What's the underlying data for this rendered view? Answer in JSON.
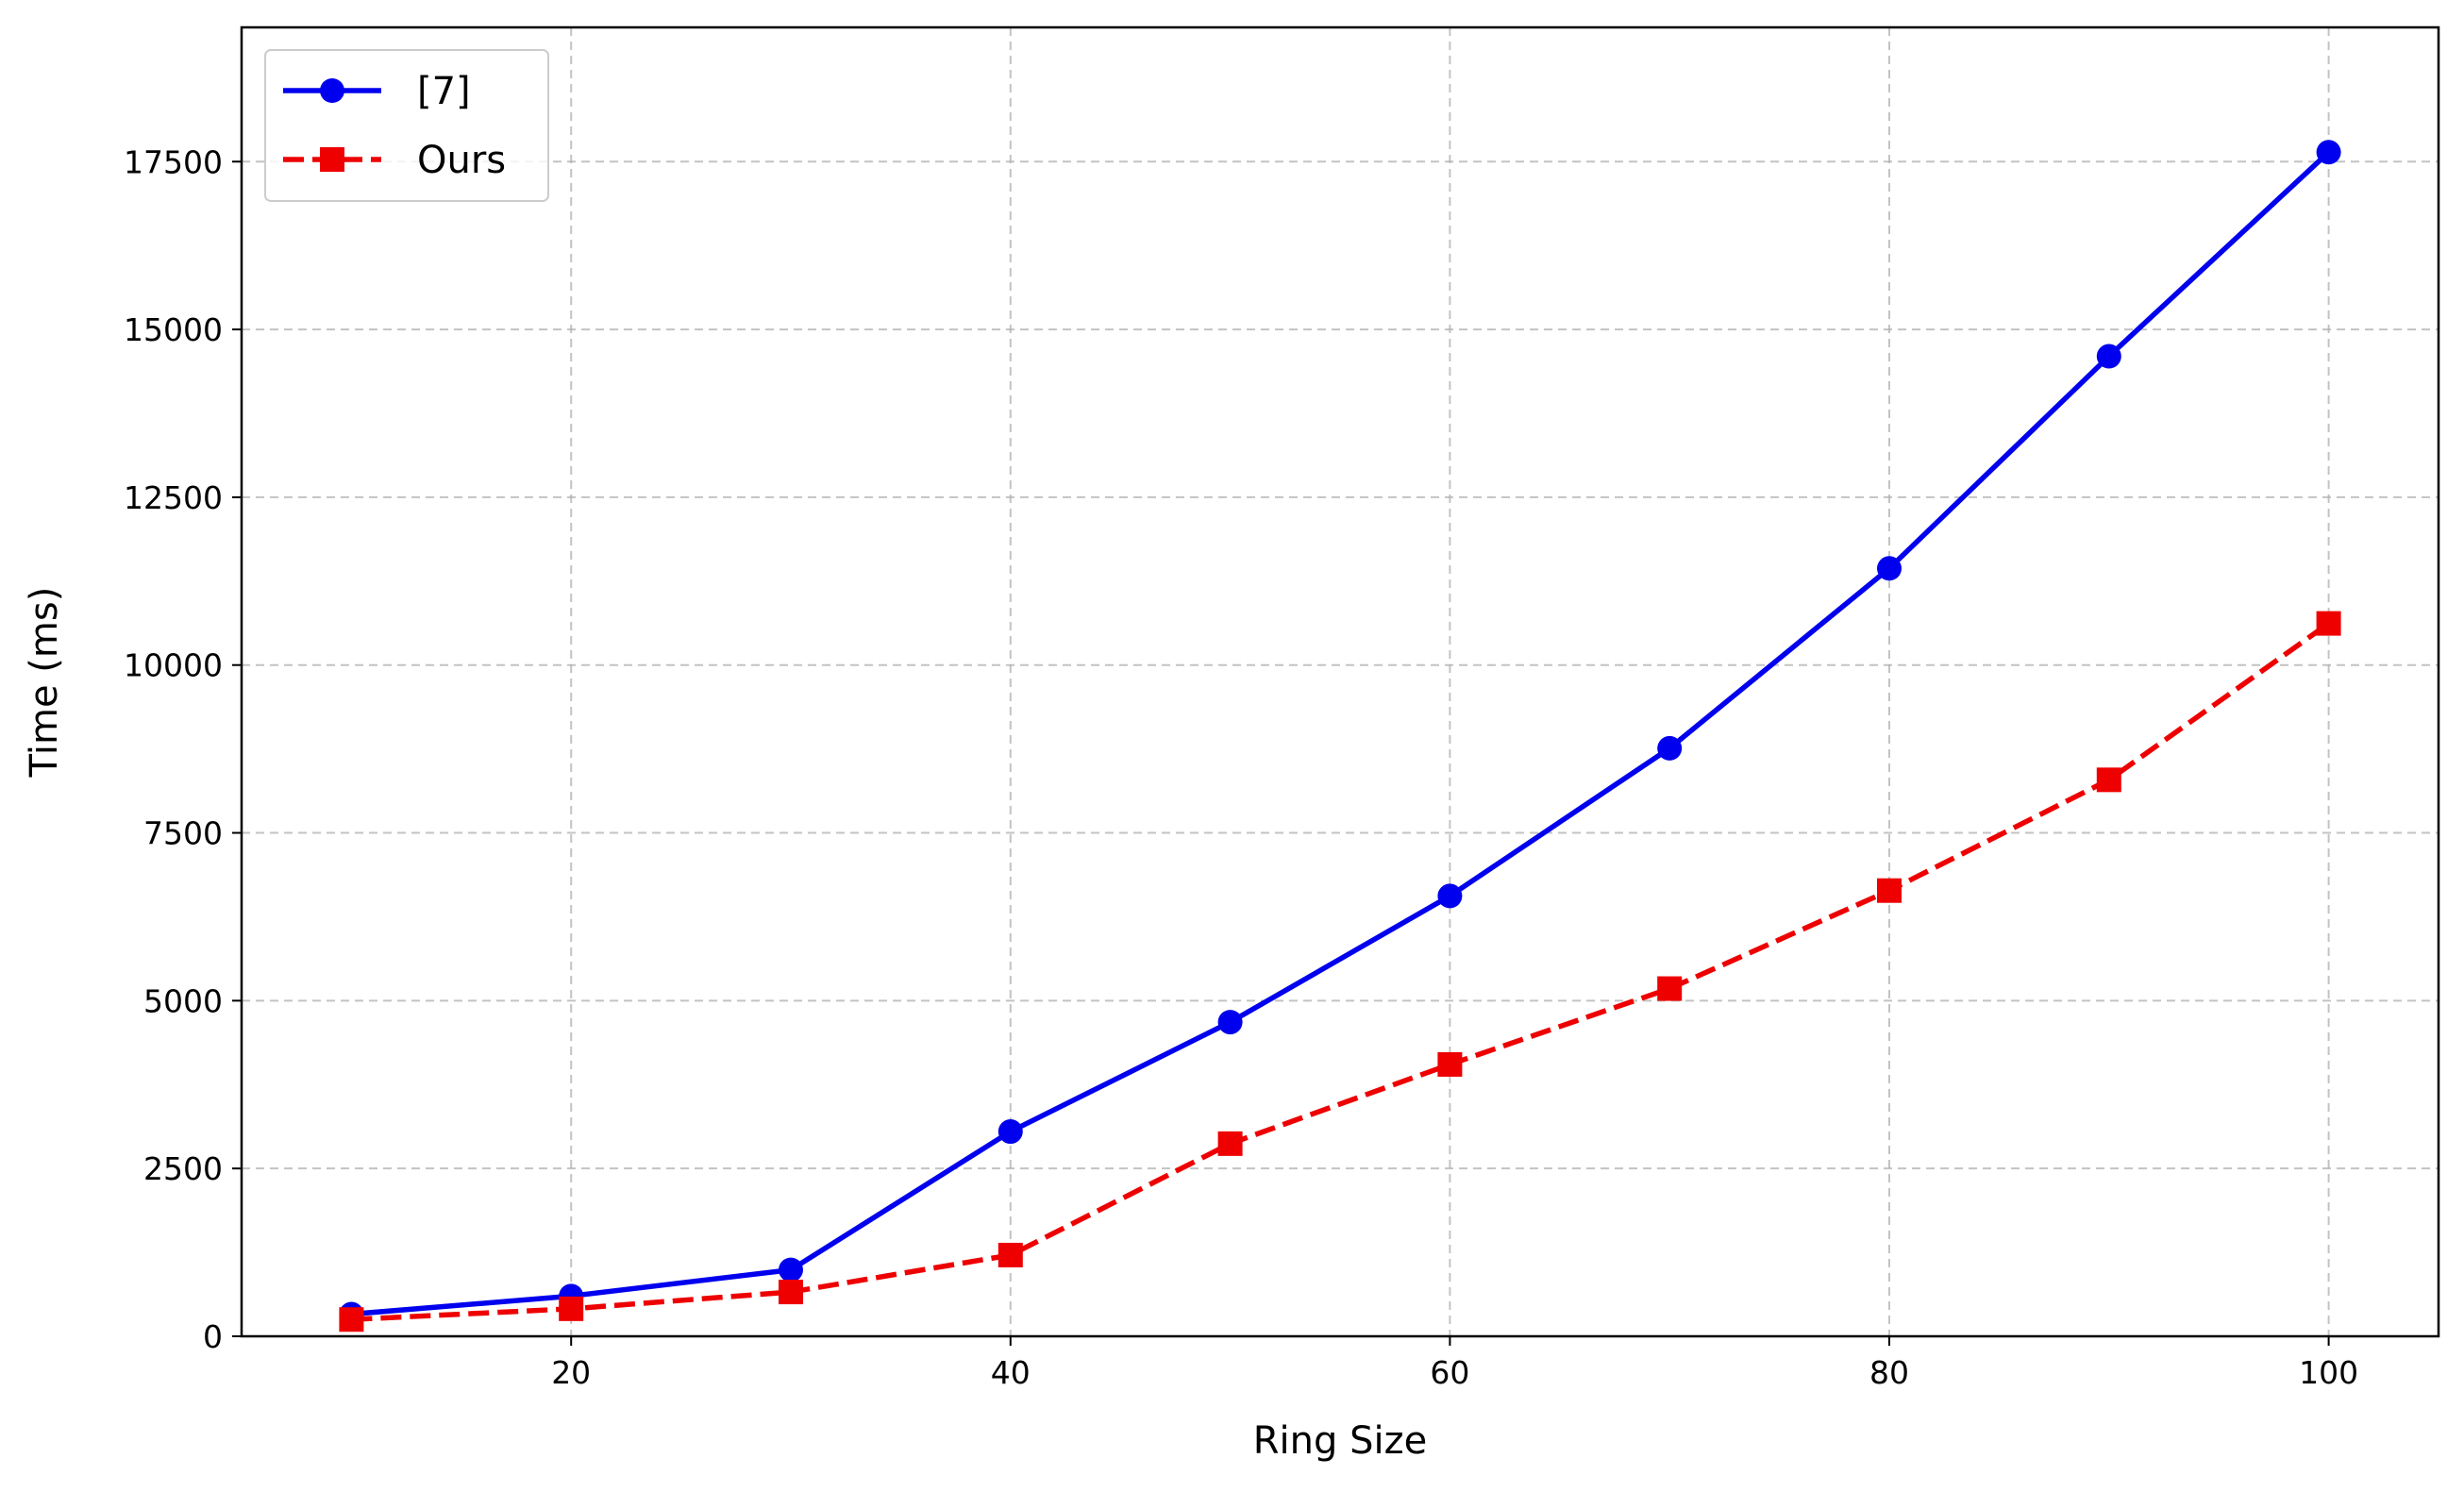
{
  "chart_data": {
    "type": "line",
    "title": "",
    "xlabel": "Ring Size",
    "ylabel": "Time (ms)",
    "xlim": [
      5,
      105
    ],
    "ylim": [
      0,
      19500
    ],
    "xticks": [
      20,
      40,
      60,
      80,
      100
    ],
    "yticks": [
      0,
      2500,
      5000,
      7500,
      10000,
      12500,
      15000,
      17500
    ],
    "grid": true,
    "legend_position": "top-left",
    "x": [
      10,
      20,
      30,
      40,
      50,
      60,
      70,
      80,
      90,
      100
    ],
    "series": [
      {
        "name": "[7]",
        "color": "#0000ee",
        "line_style": "solid",
        "marker": "circle",
        "values": [
          330,
          600,
          990,
          3050,
          4680,
          6560,
          8760,
          11440,
          14600,
          17640
        ]
      },
      {
        "name": "Ours",
        "color": "#ee0000",
        "line_style": "dashed",
        "marker": "square",
        "values": [
          250,
          410,
          660,
          1210,
          2870,
          4050,
          5180,
          6640,
          8290,
          10620
        ]
      }
    ]
  }
}
